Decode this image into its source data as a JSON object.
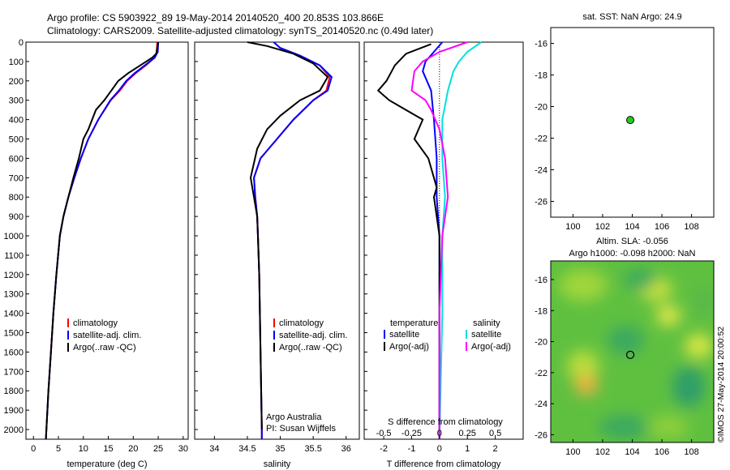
{
  "header": {
    "line1": "Argo profile: CS 5903922_89 19-May-2014 20140520_400 20.853S 103.866E",
    "line2": "Climatology: CARS2009. Satellite-adjusted climatology: synTS_20140520.nc (0.49d later)"
  },
  "colors": {
    "climatology": "#ff0000",
    "satellite": "#0000ff",
    "argo": "#000000",
    "salinity_satellite": "#00e0e0",
    "salinity_argo": "#ff00ff",
    "dot": "#22cc22"
  },
  "chart_data": [
    {
      "type": "line",
      "name": "temperature-profile",
      "xlabel": "temperature (deg C)",
      "ylabel": "",
      "xlim": [
        -1.5,
        31
      ],
      "ylim": [
        2050,
        0
      ],
      "xticks": [
        0,
        5,
        10,
        15,
        20,
        25,
        30
      ],
      "yticks": [
        0,
        100,
        200,
        300,
        400,
        500,
        600,
        700,
        800,
        900,
        1000,
        1100,
        1200,
        1300,
        1400,
        1500,
        1600,
        1700,
        1800,
        1900,
        2000
      ],
      "legend": {
        "placement": "lower-right",
        "entries": [
          "climatology",
          "satellite-adj. clim.",
          "Argo(..raw -QC)"
        ]
      },
      "series": [
        {
          "name": "climatology",
          "color": "#ff0000",
          "points": [
            [
              24.8,
              0
            ],
            [
              24.7,
              50
            ],
            [
              24.3,
              80
            ],
            [
              22.5,
              120
            ],
            [
              20.5,
              160
            ],
            [
              18.8,
              200
            ],
            [
              17.3,
              250
            ],
            [
              15.5,
              300
            ],
            [
              13.0,
              400
            ],
            [
              11.0,
              500
            ],
            [
              9.5,
              600
            ],
            [
              8.2,
              700
            ],
            [
              7.0,
              800
            ],
            [
              6.0,
              900
            ],
            [
              5.3,
              1000
            ],
            [
              4.6,
              1200
            ],
            [
              4.0,
              1400
            ],
            [
              3.5,
              1600
            ],
            [
              3.0,
              1800
            ],
            [
              2.6,
              2000
            ],
            [
              2.5,
              2050
            ]
          ]
        },
        {
          "name": "satellite-adj. clim.",
          "color": "#0000ff",
          "points": [
            [
              25.0,
              0
            ],
            [
              24.9,
              50
            ],
            [
              24.3,
              80
            ],
            [
              22.3,
              120
            ],
            [
              20.3,
              160
            ],
            [
              18.6,
              200
            ],
            [
              17.1,
              250
            ],
            [
              15.4,
              300
            ],
            [
              13.0,
              400
            ],
            [
              11.0,
              500
            ],
            [
              9.5,
              600
            ],
            [
              8.2,
              700
            ],
            [
              7.0,
              800
            ],
            [
              6.0,
              900
            ],
            [
              5.3,
              1000
            ],
            [
              4.6,
              1200
            ],
            [
              4.0,
              1400
            ],
            [
              3.5,
              1600
            ],
            [
              3.0,
              1800
            ],
            [
              2.6,
              2000
            ],
            [
              2.5,
              2050
            ]
          ]
        },
        {
          "name": "Argo(..raw -QC)",
          "color": "#000000",
          "points": [
            [
              25.0,
              0
            ],
            [
              24.6,
              60
            ],
            [
              23.8,
              80
            ],
            [
              22.0,
              110
            ],
            [
              19.0,
              160
            ],
            [
              17.0,
              200
            ],
            [
              15.6,
              250
            ],
            [
              14.2,
              300
            ],
            [
              12.5,
              350
            ],
            [
              11.0,
              450
            ],
            [
              10.0,
              500
            ],
            [
              9.1,
              600
            ],
            [
              8.0,
              700
            ],
            [
              7.0,
              800
            ],
            [
              6.0,
              900
            ],
            [
              5.3,
              1000
            ],
            [
              4.6,
              1200
            ],
            [
              4.0,
              1400
            ],
            [
              3.5,
              1600
            ],
            [
              3.0,
              1800
            ],
            [
              2.6,
              2000
            ],
            [
              2.5,
              2050
            ]
          ]
        }
      ]
    },
    {
      "type": "line",
      "name": "salinity-profile",
      "xlabel": "salinity",
      "ylabel": "",
      "xlim": [
        33.7,
        36.2
      ],
      "ylim": [
        2050,
        0
      ],
      "xticks": [
        34,
        34.5,
        35,
        35.5,
        36
      ],
      "legend": {
        "placement": "lower-right",
        "entries": [
          "climatology",
          "satellite-adj. clim.",
          "Argo(..raw -QC)"
        ]
      },
      "annotation": [
        "Argo Australia",
        "PI: Susan Wijffels"
      ],
      "series": [
        {
          "name": "climatology",
          "color": "#ff0000",
          "points": [
            [
              34.9,
              0
            ],
            [
              35.0,
              30
            ],
            [
              35.3,
              70
            ],
            [
              35.6,
              120
            ],
            [
              35.75,
              180
            ],
            [
              35.7,
              250
            ],
            [
              35.5,
              300
            ],
            [
              35.2,
              400
            ],
            [
              34.95,
              500
            ],
            [
              34.7,
              600
            ],
            [
              34.6,
              700
            ],
            [
              34.62,
              800
            ],
            [
              34.65,
              900
            ],
            [
              34.66,
              1000
            ],
            [
              34.68,
              1200
            ],
            [
              34.69,
              1400
            ],
            [
              34.7,
              1600
            ],
            [
              34.71,
              1800
            ],
            [
              34.72,
              2000
            ],
            [
              34.72,
              2050
            ]
          ]
        },
        {
          "name": "satellite-adj. clim.",
          "color": "#0000ff",
          "points": [
            [
              34.9,
              0
            ],
            [
              35.0,
              30
            ],
            [
              35.3,
              70
            ],
            [
              35.6,
              120
            ],
            [
              35.78,
              180
            ],
            [
              35.72,
              250
            ],
            [
              35.5,
              300
            ],
            [
              35.2,
              400
            ],
            [
              34.95,
              500
            ],
            [
              34.7,
              600
            ],
            [
              34.6,
              700
            ],
            [
              34.62,
              800
            ],
            [
              34.65,
              900
            ],
            [
              34.66,
              1000
            ],
            [
              34.68,
              1200
            ],
            [
              34.69,
              1400
            ],
            [
              34.7,
              1600
            ],
            [
              34.71,
              1800
            ],
            [
              34.72,
              2000
            ],
            [
              34.72,
              2050
            ]
          ]
        },
        {
          "name": "Argo(..raw -QC)",
          "color": "#000000",
          "points": [
            [
              34.5,
              0
            ],
            [
              34.8,
              20
            ],
            [
              35.2,
              60
            ],
            [
              35.5,
              110
            ],
            [
              35.72,
              180
            ],
            [
              35.6,
              250
            ],
            [
              35.3,
              300
            ],
            [
              35.0,
              380
            ],
            [
              34.8,
              450
            ],
            [
              34.65,
              550
            ],
            [
              34.55,
              700
            ],
            [
              34.6,
              800
            ],
            [
              34.65,
              900
            ],
            [
              34.66,
              1000
            ],
            [
              34.68,
              1200
            ],
            [
              34.69,
              1400
            ],
            [
              34.7,
              1600
            ],
            [
              34.71,
              1800
            ],
            [
              34.72,
              2000
            ]
          ]
        }
      ]
    },
    {
      "type": "line",
      "name": "difference-profile",
      "xlabel": "T difference from climatology",
      "top_axis_label": "S difference from climatology",
      "xlim": [
        -2.7,
        3.0
      ],
      "ylim": [
        2050,
        0
      ],
      "xticks": [
        -2,
        -1,
        0,
        1,
        2
      ],
      "top_ticks": [
        {
          "label": "-0.5",
          "t": -2
        },
        {
          "label": "-0.25",
          "t": -1
        },
        {
          "label": "0",
          "t": 0
        },
        {
          "label": "0.25",
          "t": 1
        },
        {
          "label": "0.5",
          "t": 2
        }
      ],
      "legend": {
        "placement": "lower-center",
        "temperature_heading": "temperature",
        "salinity_heading": "salinity",
        "entries": [
          "satellite",
          "Argo(-adj)",
          "satellite",
          "Argo(-adj)"
        ]
      },
      "series": [
        {
          "name": "temperature satellite",
          "color": "#0000ff",
          "points": [
            [
              0.1,
              0
            ],
            [
              -0.2,
              50
            ],
            [
              -0.5,
              100
            ],
            [
              -0.6,
              150
            ],
            [
              -0.3,
              250
            ],
            [
              -0.2,
              400
            ],
            [
              -0.1,
              600
            ],
            [
              -0.1,
              800
            ],
            [
              0.0,
              1000
            ],
            [
              0.0,
              1400
            ],
            [
              0.0,
              2050
            ]
          ]
        },
        {
          "name": "temperature Argo(-adj)",
          "color": "#000000",
          "points": [
            [
              -0.3,
              10
            ],
            [
              -1.2,
              60
            ],
            [
              -1.6,
              120
            ],
            [
              -1.9,
              200
            ],
            [
              -2.2,
              250
            ],
            [
              -1.8,
              300
            ],
            [
              -1.2,
              350
            ],
            [
              -0.6,
              400
            ],
            [
              -0.9,
              500
            ],
            [
              -0.4,
              600
            ],
            [
              -0.1,
              750
            ],
            [
              -0.2,
              800
            ],
            [
              0.0,
              1000
            ],
            [
              0.0,
              1400
            ],
            [
              0.0,
              2050
            ]
          ]
        },
        {
          "name": "salinity satellite",
          "color": "#00e0e0",
          "points": [
            [
              1.5,
              0
            ],
            [
              1.0,
              50
            ],
            [
              0.7,
              100
            ],
            [
              0.5,
              150
            ],
            [
              0.3,
              250
            ],
            [
              0.1,
              400
            ],
            [
              0.1,
              600
            ],
            [
              0.2,
              800
            ],
            [
              0.1,
              1000
            ],
            [
              0.1,
              1400
            ],
            [
              0.0,
              2050
            ]
          ]
        },
        {
          "name": "salinity Argo(-adj)",
          "color": "#ff00ff",
          "points": [
            [
              1.0,
              0
            ],
            [
              0.0,
              50
            ],
            [
              -0.6,
              100
            ],
            [
              -0.9,
              150
            ],
            [
              -1.0,
              250
            ],
            [
              -0.5,
              300
            ],
            [
              -0.3,
              350
            ],
            [
              0.0,
              450
            ],
            [
              0.2,
              600
            ],
            [
              0.3,
              800
            ],
            [
              0.1,
              1000
            ],
            [
              0.0,
              1400
            ],
            [
              0.0,
              2050
            ]
          ]
        }
      ]
    },
    {
      "type": "scatter",
      "name": "sst-location-map",
      "title": "sat. SST: NaN Argo: 24.9",
      "xlim": [
        98.5,
        109.5
      ],
      "ylim": [
        -27,
        -15
      ],
      "xticks": [
        100,
        102,
        104,
        106,
        108
      ],
      "yticks": [
        -16,
        -18,
        -20,
        -22,
        -24,
        -26
      ],
      "points": [
        {
          "x": 103.866,
          "y": -20.853
        }
      ]
    },
    {
      "type": "heatmap",
      "name": "altimetry-sla-map",
      "title_lines": [
        "Altim. SLA: -0.056",
        "Argo h1000: -0.098 h2000: NaN"
      ],
      "xlim": [
        98.5,
        109.5
      ],
      "ylim": [
        -26.5,
        -14.8
      ],
      "xticks": [
        100,
        102,
        104,
        106,
        108
      ],
      "yticks": [
        -16,
        -18,
        -20,
        -22,
        -24,
        -26
      ],
      "marker": {
        "x": 103.866,
        "y": -20.853
      }
    }
  ],
  "footer": {
    "credit": "©IMOS 27-May-2014 20:00:52"
  }
}
